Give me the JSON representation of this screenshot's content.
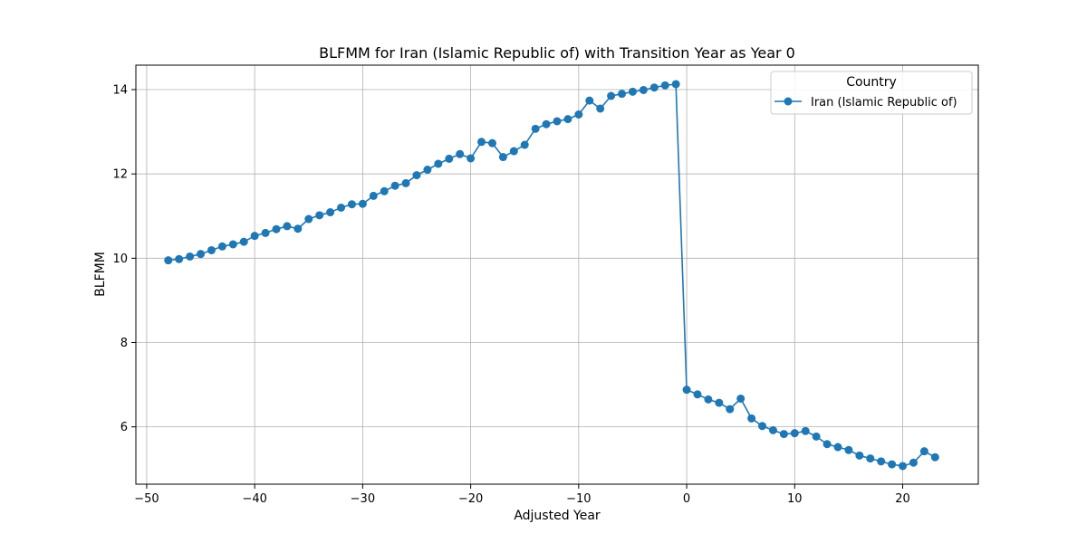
{
  "chart_data": {
    "type": "line",
    "title": "BLFMM for Iran (Islamic Republic of) with Transition Year as Year 0",
    "xlabel": "Adjusted Year",
    "ylabel": "BLFMM",
    "xlim": [
      -51,
      27
    ],
    "ylim": [
      4.64,
      14.58
    ],
    "xticks": [
      -50,
      -40,
      -30,
      -20,
      -10,
      0,
      10,
      20
    ],
    "xtick_labels": [
      "−50",
      "−40",
      "−30",
      "−20",
      "−10",
      "0",
      "10",
      "20"
    ],
    "yticks": [
      6,
      8,
      10,
      12,
      14
    ],
    "ytick_labels": [
      "6",
      "8",
      "10",
      "12",
      "14"
    ],
    "grid": true,
    "legend": {
      "title": "Country",
      "placement": "top-right"
    },
    "colors": {
      "series": "#1f77b4",
      "grid": "#b0b0b0"
    },
    "series": [
      {
        "name": "Iran (Islamic Republic of)",
        "marker": "circle",
        "x": [
          -48,
          -47,
          -46,
          -45,
          -44,
          -43,
          -42,
          -41,
          -40,
          -39,
          -38,
          -37,
          -36,
          -35,
          -34,
          -33,
          -32,
          -31,
          -30,
          -29,
          -28,
          -27,
          -26,
          -25,
          -24,
          -23,
          -22,
          -21,
          -20,
          -19,
          -18,
          -17,
          -16,
          -15,
          -14,
          -13,
          -12,
          -11,
          -10,
          -9,
          -8,
          -7,
          -6,
          -5,
          -4,
          -3,
          -2,
          -1,
          0,
          1,
          2,
          3,
          4,
          5,
          6,
          7,
          8,
          9,
          10,
          11,
          12,
          13,
          14,
          15,
          16,
          17,
          18,
          19,
          20,
          21,
          22,
          23
        ],
        "y": [
          9.95,
          9.98,
          10.04,
          10.1,
          10.19,
          10.28,
          10.33,
          10.39,
          10.53,
          10.6,
          10.69,
          10.76,
          10.7,
          10.93,
          11.02,
          11.09,
          11.2,
          11.28,
          11.29,
          11.48,
          11.59,
          11.72,
          11.78,
          11.97,
          12.1,
          12.24,
          12.36,
          12.47,
          12.37,
          12.76,
          12.73,
          12.4,
          12.54,
          12.69,
          13.07,
          13.18,
          13.25,
          13.3,
          13.41,
          13.74,
          13.55,
          13.85,
          13.9,
          13.95,
          13.99,
          14.05,
          14.1,
          14.13,
          6.88,
          6.77,
          6.65,
          6.57,
          6.42,
          6.67,
          6.2,
          6.02,
          5.92,
          5.83,
          5.85,
          5.9,
          5.77,
          5.59,
          5.52,
          5.45,
          5.32,
          5.25,
          5.18,
          5.11,
          5.07,
          5.15,
          5.42,
          5.28
        ]
      }
    ]
  }
}
